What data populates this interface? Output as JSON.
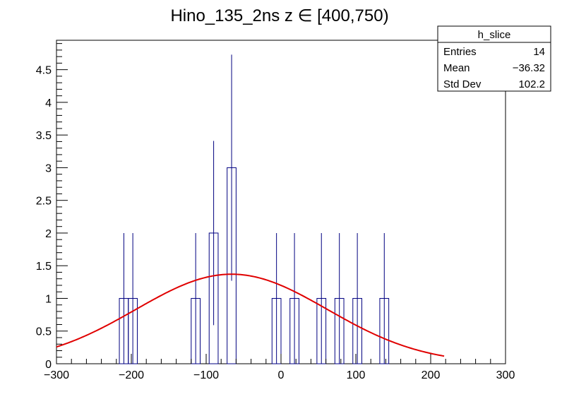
{
  "chart_data": {
    "type": "bar",
    "title": "Hino_135_2ns z  ∈ [400,750)",
    "xlabel": "",
    "ylabel": "",
    "xlim": [
      -300,
      300
    ],
    "ylim": [
      0,
      4.95
    ],
    "bin_width": 12,
    "x_ticks": [
      -300,
      -200,
      -100,
      0,
      100,
      200,
      300
    ],
    "x_tick_labels": [
      "−300",
      "−200",
      "−100",
      "0",
      "100",
      "200",
      "300"
    ],
    "y_ticks": [
      0,
      0.5,
      1,
      1.5,
      2,
      2.5,
      3,
      3.5,
      4,
      4.5
    ],
    "y_tick_labels": [
      "0",
      "0.5",
      "1",
      "1.5",
      "2",
      "2.5",
      "3",
      "3.5",
      "4",
      "4.5"
    ],
    "bins": [
      {
        "x": -210,
        "value": 1,
        "err_low": 0,
        "err_high": 2
      },
      {
        "x": -198,
        "value": 1,
        "err_low": 0,
        "err_high": 2
      },
      {
        "x": -114,
        "value": 1,
        "err_low": 0,
        "err_high": 2
      },
      {
        "x": -90,
        "value": 2,
        "err_low": 0.59,
        "err_high": 3.41
      },
      {
        "x": -66,
        "value": 3,
        "err_low": 1.27,
        "err_high": 4.73
      },
      {
        "x": -6,
        "value": 1,
        "err_low": 0,
        "err_high": 2
      },
      {
        "x": 18,
        "value": 1,
        "err_low": 0,
        "err_high": 2
      },
      {
        "x": 54,
        "value": 1,
        "err_low": 0,
        "err_high": 2
      },
      {
        "x": 78,
        "value": 1,
        "err_low": 0,
        "err_high": 2
      },
      {
        "x": 102,
        "value": 1,
        "err_low": 0,
        "err_high": 2
      },
      {
        "x": 138,
        "value": 1,
        "err_low": 0,
        "err_high": 2
      }
    ],
    "fit": {
      "type": "gaussian",
      "amplitude": 1.37,
      "mean": -66,
      "sigma": 128,
      "x_range": [
        -300,
        218
      ],
      "color": "#e00000"
    },
    "hist_color": "#000080",
    "legend": "top-right",
    "grid": false
  },
  "stats_box": {
    "name": "h_slice",
    "rows": [
      {
        "label": "Entries",
        "value": "14"
      },
      {
        "label": "Mean",
        "value": "−36.32"
      },
      {
        "label": "Std Dev",
        "value": "102.2"
      }
    ]
  }
}
